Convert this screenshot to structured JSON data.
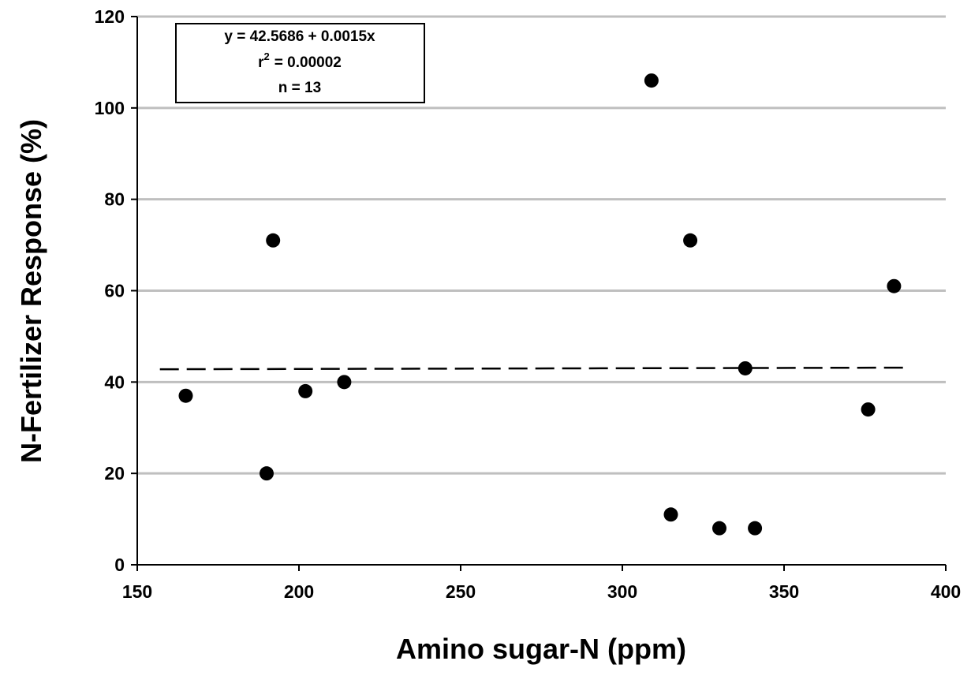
{
  "chart_data": {
    "type": "scatter",
    "x_label": "Amino sugar-N (ppm)",
    "y_label": "N-Fertilizer Response (%)",
    "x": [
      165,
      190,
      192,
      202,
      214,
      309,
      315,
      321,
      330,
      338,
      341,
      376,
      384
    ],
    "values": [
      37,
      20,
      71,
      38,
      40,
      106,
      11,
      71,
      8,
      43,
      8,
      34,
      61
    ],
    "color": "#000000",
    "trendline": {
      "x": [
        157,
        389
      ],
      "values": [
        42.8,
        43.15
      ],
      "color": "#000000"
    },
    "annotation": {
      "equation": "y = 42.5686 + 0.0015x",
      "r2": [
        "r",
        "2",
        "= 0.00002"
      ],
      "n": "n = 13"
    },
    "xlim": [
      150,
      400
    ],
    "xticks": [
      150,
      200,
      250,
      300,
      350,
      400
    ],
    "ylim": [
      0,
      120
    ],
    "yticks": [
      0,
      20,
      40,
      60,
      80,
      100,
      120
    ],
    "grid": true,
    "grid_color": "#bfbfbf"
  }
}
